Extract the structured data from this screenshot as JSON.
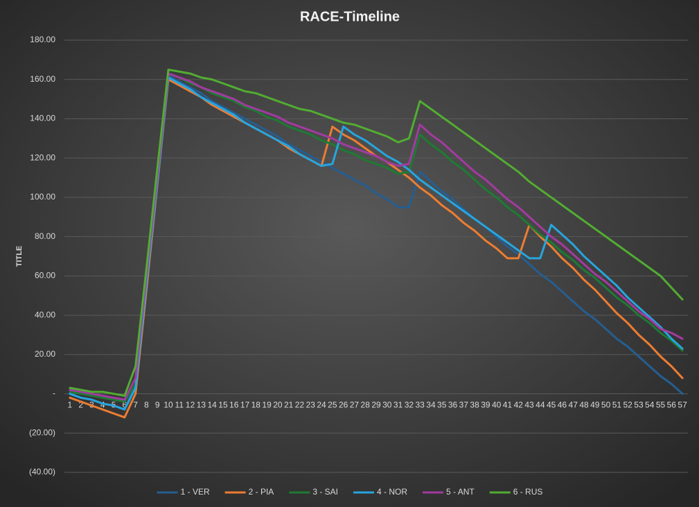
{
  "chart_data": {
    "type": "line",
    "title": "RACE-Timeline",
    "y_label": "TITLE",
    "categories": [
      1,
      2,
      3,
      4,
      5,
      6,
      7,
      8,
      9,
      10,
      11,
      12,
      13,
      14,
      15,
      16,
      17,
      18,
      19,
      20,
      21,
      22,
      23,
      24,
      25,
      26,
      27,
      28,
      29,
      30,
      31,
      32,
      33,
      34,
      35,
      36,
      37,
      38,
      39,
      40,
      41,
      42,
      43,
      44,
      45,
      46,
      47,
      48,
      49,
      50,
      51,
      52,
      53,
      54,
      55,
      56,
      57
    ],
    "ylim": [
      -40,
      180
    ],
    "yticks": [
      {
        "value": 180,
        "label": "180.00"
      },
      {
        "value": 160,
        "label": "160.00"
      },
      {
        "value": 140,
        "label": "140.00"
      },
      {
        "value": 120,
        "label": "120.00"
      },
      {
        "value": 100,
        "label": "100.00"
      },
      {
        "value": 80,
        "label": "80.00"
      },
      {
        "value": 60,
        "label": "60.00"
      },
      {
        "value": 40,
        "label": "40.00"
      },
      {
        "value": 20,
        "label": "20.00"
      },
      {
        "value": 0,
        "label": "-"
      },
      {
        "value": -20,
        "label": "(20.00)"
      },
      {
        "value": -40,
        "label": "(40.00)"
      }
    ],
    "grid": true,
    "legend": "bottom",
    "series": [
      {
        "name": "1 - VER",
        "color": "#255e91",
        "values": [
          0,
          -2,
          -3,
          -5,
          -6,
          -8,
          5,
          57,
          110,
          162,
          159,
          156,
          153,
          149,
          146,
          143,
          140,
          137,
          134,
          131,
          127,
          124,
          121,
          118,
          115,
          112,
          109,
          106,
          102,
          99,
          95,
          95,
          113,
          108,
          103,
          99,
          94,
          89,
          85,
          80,
          75,
          71,
          66,
          61,
          57,
          52,
          47,
          42,
          38,
          33,
          28,
          24,
          19,
          14,
          9,
          5,
          0
        ]
      },
      {
        "name": "2 - PIA",
        "color": "#ed7d31",
        "values": [
          -2,
          -4,
          -6,
          -8,
          -10,
          -12,
          0,
          53,
          107,
          160,
          157,
          154,
          151,
          147,
          144,
          141,
          138,
          135,
          132,
          129,
          125,
          122,
          119,
          116,
          136,
          132,
          129,
          125,
          121,
          118,
          114,
          110,
          105,
          101,
          96,
          92,
          87,
          83,
          78,
          74,
          69,
          69,
          86,
          80,
          75,
          69,
          64,
          58,
          53,
          47,
          41,
          36,
          30,
          25,
          19,
          14,
          8
        ]
      },
      {
        "name": "3 - SAI",
        "color": "#1e7b34",
        "values": [
          1,
          0,
          -1,
          -2,
          -3,
          -4,
          5,
          58,
          110,
          163,
          161,
          158,
          156,
          153,
          151,
          149,
          146,
          144,
          141,
          139,
          136,
          134,
          132,
          129,
          127,
          124,
          122,
          119,
          117,
          115,
          112,
          113,
          132,
          127,
          123,
          118,
          114,
          109,
          104,
          100,
          95,
          91,
          86,
          81,
          77,
          72,
          68,
          63,
          59,
          54,
          49,
          45,
          40,
          36,
          31,
          27,
          22
        ]
      },
      {
        "name": "4 - NOR",
        "color": "#27a5df",
        "values": [
          0,
          -2,
          -3,
          -5,
          -6,
          -8,
          3,
          56,
          108,
          161,
          158,
          155,
          151,
          148,
          145,
          142,
          138,
          135,
          132,
          129,
          126,
          122,
          119,
          116,
          117,
          136,
          132,
          129,
          125,
          121,
          118,
          114,
          109,
          105,
          101,
          97,
          93,
          89,
          85,
          81,
          77,
          73,
          69,
          69,
          86,
          81,
          76,
          70,
          65,
          60,
          55,
          49,
          44,
          39,
          34,
          28,
          23
        ]
      },
      {
        "name": "5 - ANT",
        "color": "#a23ba0",
        "values": [
          2,
          1,
          0,
          -1,
          -2,
          -3,
          8,
          60,
          111,
          163,
          161,
          159,
          156,
          154,
          152,
          150,
          147,
          145,
          143,
          141,
          138,
          136,
          134,
          132,
          130,
          127,
          125,
          123,
          121,
          118,
          116,
          117,
          137,
          132,
          128,
          123,
          118,
          113,
          109,
          104,
          99,
          95,
          90,
          85,
          80,
          76,
          71,
          66,
          61,
          57,
          52,
          47,
          42,
          38,
          33,
          31,
          28
        ]
      },
      {
        "name": "6 - RUS",
        "color": "#52ad32",
        "values": [
          3,
          2,
          1,
          1,
          0,
          -1,
          14,
          64,
          115,
          165,
          164,
          163,
          161,
          160,
          158,
          156,
          154,
          153,
          151,
          149,
          147,
          145,
          144,
          142,
          140,
          138,
          137,
          135,
          133,
          131,
          128,
          130,
          149,
          145,
          141,
          137,
          133,
          129,
          125,
          121,
          117,
          113,
          108,
          104,
          100,
          96,
          92,
          88,
          84,
          80,
          76,
          72,
          68,
          64,
          60,
          54,
          48
        ]
      }
    ]
  }
}
